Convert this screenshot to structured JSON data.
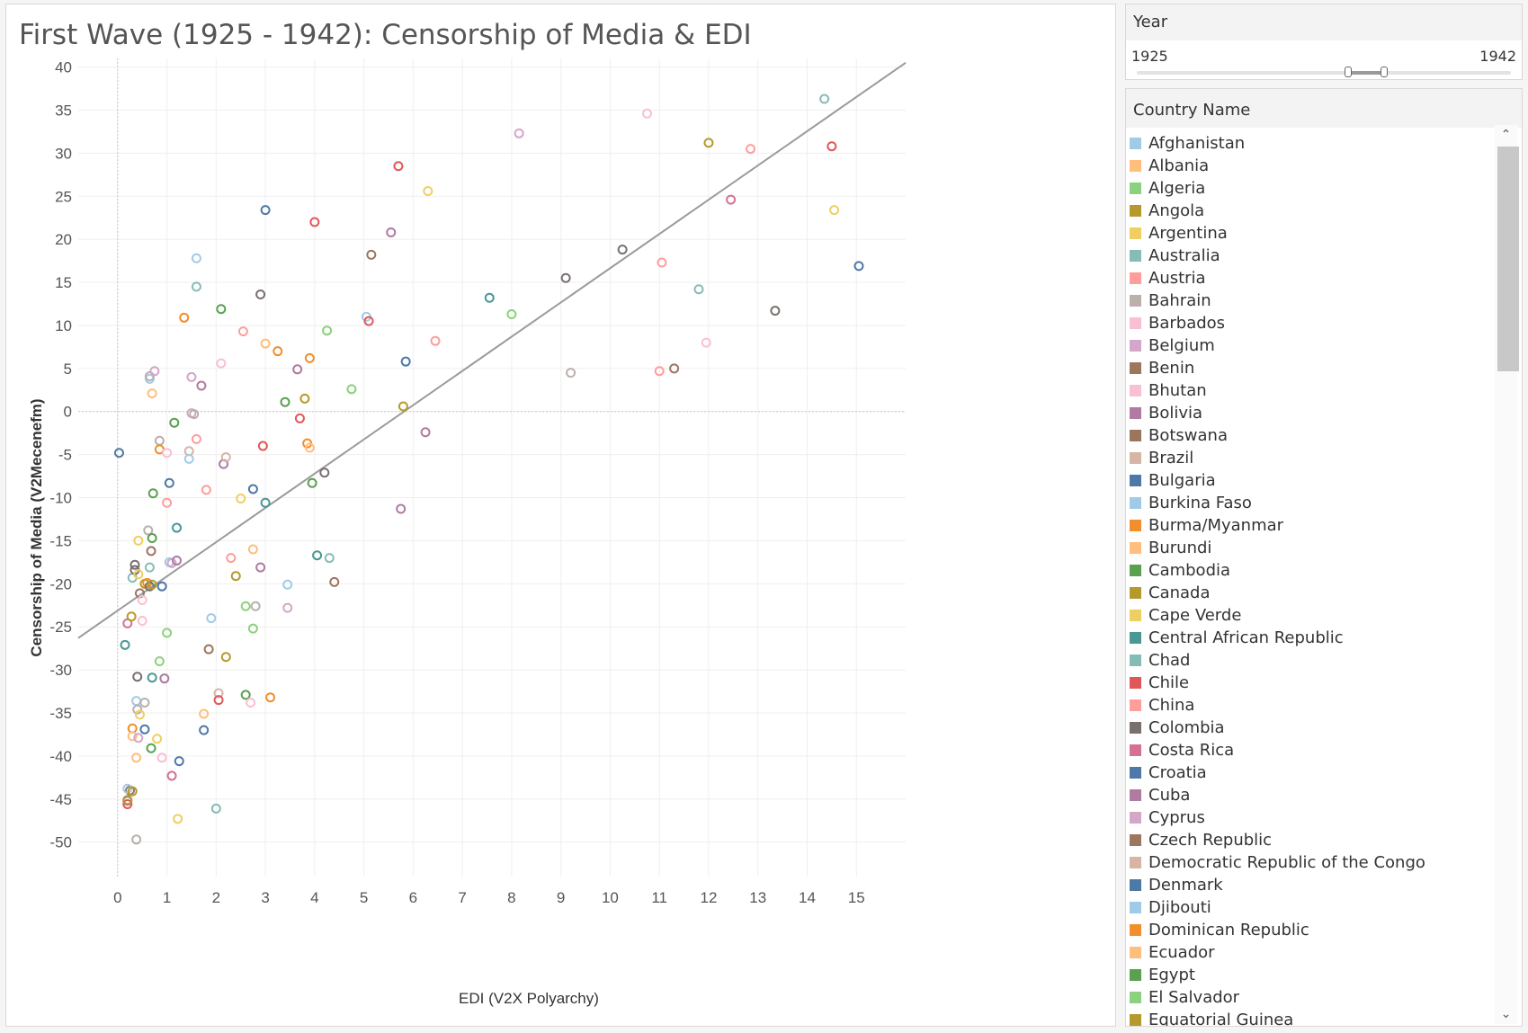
{
  "chart_data": {
    "type": "scatter",
    "title": "First Wave (1925 - 1942): Censorship of Media & EDI",
    "xlabel": "EDI (V2X Polyarchy)",
    "ylabel": "Censorship of Media (V2Mecenefm)",
    "xlim": [
      -0.8,
      16
    ],
    "ylim": [
      -54,
      41
    ],
    "xticks": [
      0,
      1,
      2,
      3,
      4,
      5,
      6,
      7,
      8,
      9,
      10,
      11,
      12,
      13,
      14,
      15
    ],
    "yticks": [
      40,
      35,
      30,
      25,
      20,
      15,
      10,
      5,
      0,
      -5,
      -10,
      -15,
      -20,
      -25,
      -30,
      -35,
      -40,
      -45,
      -50
    ],
    "grid": true,
    "trendline": {
      "x0": -0.8,
      "y0": -26.3,
      "x1": 16.0,
      "y1": 40.5,
      "color": "#9a9a9a"
    },
    "points": [
      {
        "x": 0.03,
        "y": -4.8,
        "c": "#4e79a7"
      },
      {
        "x": 0.2,
        "y": -45.2,
        "c": "#b07aa1"
      },
      {
        "x": 0.2,
        "y": -45.6,
        "c": "#e15759"
      },
      {
        "x": 0.2,
        "y": -45.1,
        "c": "#b6992d"
      },
      {
        "x": 0.25,
        "y": -44.0,
        "c": "#9c755f"
      },
      {
        "x": 0.2,
        "y": -43.8,
        "c": "#a0cbe8"
      },
      {
        "x": 0.3,
        "y": -44.1,
        "c": "#b6992d"
      },
      {
        "x": 0.2,
        "y": -24.6,
        "c": "#d37295"
      },
      {
        "x": 0.15,
        "y": -27.1,
        "c": "#499894"
      },
      {
        "x": 0.28,
        "y": -23.8,
        "c": "#b6992d"
      },
      {
        "x": 0.3,
        "y": -19.3,
        "c": "#86bcb6"
      },
      {
        "x": 0.35,
        "y": -18.4,
        "c": "#79706e"
      },
      {
        "x": 0.35,
        "y": -17.8,
        "c": "#79706e"
      },
      {
        "x": 0.42,
        "y": -18.9,
        "c": "#f1ce63"
      },
      {
        "x": 0.45,
        "y": -21.1,
        "c": "#9d7660"
      },
      {
        "x": 0.5,
        "y": -21.9,
        "c": "#fabfd2"
      },
      {
        "x": 0.5,
        "y": -24.3,
        "c": "#fabfd2"
      },
      {
        "x": 0.55,
        "y": -20.0,
        "c": "#b6992d"
      },
      {
        "x": 0.6,
        "y": -19.9,
        "c": "#f28e2b"
      },
      {
        "x": 0.65,
        "y": -20.3,
        "c": "#79706e"
      },
      {
        "x": 0.7,
        "y": -20.1,
        "c": "#b6992d"
      },
      {
        "x": 0.4,
        "y": -30.8,
        "c": "#79706e"
      },
      {
        "x": 0.7,
        "y": -30.9,
        "c": "#499894"
      },
      {
        "x": 0.95,
        "y": -31.0,
        "c": "#b07aa1"
      },
      {
        "x": 0.85,
        "y": -29.0,
        "c": "#8cd17d"
      },
      {
        "x": 1.0,
        "y": -25.7,
        "c": "#8cd17d"
      },
      {
        "x": 0.9,
        "y": -20.3,
        "c": "#4e79a7"
      },
      {
        "x": 0.38,
        "y": -33.6,
        "c": "#a0cbe8"
      },
      {
        "x": 0.55,
        "y": -33.8,
        "c": "#bab0ac"
      },
      {
        "x": 0.4,
        "y": -34.6,
        "c": "#bab0ac"
      },
      {
        "x": 0.45,
        "y": -35.2,
        "c": "#f1ce63"
      },
      {
        "x": 0.3,
        "y": -36.8,
        "c": "#f28e2b"
      },
      {
        "x": 0.55,
        "y": -36.9,
        "c": "#4e79a7"
      },
      {
        "x": 0.3,
        "y": -37.7,
        "c": "#ffbe7d"
      },
      {
        "x": 0.42,
        "y": -37.9,
        "c": "#d4a6c8"
      },
      {
        "x": 0.8,
        "y": -38.0,
        "c": "#f1ce63"
      },
      {
        "x": 0.68,
        "y": -39.1,
        "c": "#59a14f"
      },
      {
        "x": 0.38,
        "y": -40.2,
        "c": "#ffbe7d"
      },
      {
        "x": 0.9,
        "y": -40.2,
        "c": "#fabfd2"
      },
      {
        "x": 0.38,
        "y": -49.7,
        "c": "#bab0ac"
      },
      {
        "x": 1.1,
        "y": -42.3,
        "c": "#d37295"
      },
      {
        "x": 1.25,
        "y": -40.6,
        "c": "#4e79a7"
      },
      {
        "x": 1.22,
        "y": -47.3,
        "c": "#f1ce63"
      },
      {
        "x": 2.0,
        "y": -46.1,
        "c": "#86bcb6"
      },
      {
        "x": 0.42,
        "y": -15.0,
        "c": "#f1ce63"
      },
      {
        "x": 0.62,
        "y": -13.8,
        "c": "#bab0ac"
      },
      {
        "x": 0.7,
        "y": -14.7,
        "c": "#59a14f"
      },
      {
        "x": 0.68,
        "y": -16.2,
        "c": "#9c755f"
      },
      {
        "x": 0.65,
        "y": -18.1,
        "c": "#86bcb6"
      },
      {
        "x": 1.05,
        "y": -17.5,
        "c": "#a0cbe8"
      },
      {
        "x": 1.1,
        "y": -17.6,
        "c": "#d4a6c8"
      },
      {
        "x": 1.2,
        "y": -17.3,
        "c": "#b07aa1"
      },
      {
        "x": 1.2,
        "y": -13.5,
        "c": "#499894"
      },
      {
        "x": 0.72,
        "y": -9.5,
        "c": "#59a14f"
      },
      {
        "x": 1.0,
        "y": -10.6,
        "c": "#ff9d9a"
      },
      {
        "x": 1.05,
        "y": -8.3,
        "c": "#4e79a7"
      },
      {
        "x": 0.85,
        "y": -3.4,
        "c": "#bab0ac"
      },
      {
        "x": 0.85,
        "y": -4.4,
        "c": "#f28e2b"
      },
      {
        "x": 1.0,
        "y": -4.8,
        "c": "#fabfd2"
      },
      {
        "x": 1.15,
        "y": -1.3,
        "c": "#59a14f"
      },
      {
        "x": 1.45,
        "y": -4.6,
        "c": "#d7b5a6"
      },
      {
        "x": 1.45,
        "y": -5.5,
        "c": "#a0cbe8"
      },
      {
        "x": 1.5,
        "y": -0.2,
        "c": "#d4a6c8"
      },
      {
        "x": 1.55,
        "y": -0.3,
        "c": "#bab0ac"
      },
      {
        "x": 1.6,
        "y": -3.2,
        "c": "#ff9d9a"
      },
      {
        "x": 0.7,
        "y": 2.1,
        "c": "#ffbe7d"
      },
      {
        "x": 0.65,
        "y": 3.8,
        "c": "#a0cbe8"
      },
      {
        "x": 0.65,
        "y": 4.1,
        "c": "#bab0ac"
      },
      {
        "x": 0.75,
        "y": 4.7,
        "c": "#d4a6c8"
      },
      {
        "x": 1.5,
        "y": 4.0,
        "c": "#d4a6c8"
      },
      {
        "x": 1.7,
        "y": 3.0,
        "c": "#b07aa1"
      },
      {
        "x": 1.35,
        "y": 10.9,
        "c": "#f28e2b"
      },
      {
        "x": 1.6,
        "y": 14.5,
        "c": "#86bcb6"
      },
      {
        "x": 1.6,
        "y": 17.8,
        "c": "#a0cbe8"
      },
      {
        "x": 2.1,
        "y": 11.9,
        "c": "#59a14f"
      },
      {
        "x": 2.1,
        "y": 5.6,
        "c": "#fabfd2"
      },
      {
        "x": 2.55,
        "y": 9.3,
        "c": "#ff9d9a"
      },
      {
        "x": 2.9,
        "y": 13.6,
        "c": "#79706e"
      },
      {
        "x": 3.0,
        "y": 23.4,
        "c": "#4e79a7"
      },
      {
        "x": 3.0,
        "y": 7.9,
        "c": "#ffbe7d"
      },
      {
        "x": 3.25,
        "y": 7.0,
        "c": "#f28e2b"
      },
      {
        "x": 1.8,
        "y": -9.1,
        "c": "#ff9d9a"
      },
      {
        "x": 2.15,
        "y": -6.1,
        "c": "#b07aa1"
      },
      {
        "x": 2.2,
        "y": -5.3,
        "c": "#d7b5a6"
      },
      {
        "x": 2.5,
        "y": -10.1,
        "c": "#f1ce63"
      },
      {
        "x": 2.75,
        "y": -9.0,
        "c": "#4e79a7"
      },
      {
        "x": 3.0,
        "y": -10.6,
        "c": "#499894"
      },
      {
        "x": 2.95,
        "y": -4.0,
        "c": "#e15759"
      },
      {
        "x": 2.3,
        "y": -17.0,
        "c": "#ff9d9a"
      },
      {
        "x": 2.75,
        "y": -16.0,
        "c": "#ffbe7d"
      },
      {
        "x": 2.9,
        "y": -18.1,
        "c": "#b07aa1"
      },
      {
        "x": 2.4,
        "y": -19.1,
        "c": "#b6992d"
      },
      {
        "x": 1.9,
        "y": -24.0,
        "c": "#a0cbe8"
      },
      {
        "x": 2.6,
        "y": -22.6,
        "c": "#8cd17d"
      },
      {
        "x": 2.8,
        "y": -22.6,
        "c": "#bab0ac"
      },
      {
        "x": 2.75,
        "y": -25.2,
        "c": "#8cd17d"
      },
      {
        "x": 1.85,
        "y": -27.6,
        "c": "#9c755f"
      },
      {
        "x": 2.2,
        "y": -28.5,
        "c": "#b6992d"
      },
      {
        "x": 1.75,
        "y": -35.1,
        "c": "#ffbe7d"
      },
      {
        "x": 2.05,
        "y": -32.7,
        "c": "#d7b5a6"
      },
      {
        "x": 2.05,
        "y": -33.5,
        "c": "#e15759"
      },
      {
        "x": 1.75,
        "y": -37.0,
        "c": "#4e79a7"
      },
      {
        "x": 2.6,
        "y": -32.9,
        "c": "#59a14f"
      },
      {
        "x": 2.7,
        "y": -33.8,
        "c": "#fabfd2"
      },
      {
        "x": 3.1,
        "y": -33.2,
        "c": "#f28e2b"
      },
      {
        "x": 3.45,
        "y": -22.8,
        "c": "#d4a6c8"
      },
      {
        "x": 3.45,
        "y": -20.1,
        "c": "#a0cbe8"
      },
      {
        "x": 3.4,
        "y": 1.1,
        "c": "#59a14f"
      },
      {
        "x": 3.65,
        "y": 4.9,
        "c": "#b07aa1"
      },
      {
        "x": 3.7,
        "y": -0.8,
        "c": "#e15759"
      },
      {
        "x": 3.8,
        "y": 1.5,
        "c": "#b6992d"
      },
      {
        "x": 3.85,
        "y": -3.7,
        "c": "#f28e2b"
      },
      {
        "x": 3.9,
        "y": -4.2,
        "c": "#ffbe7d"
      },
      {
        "x": 3.9,
        "y": 6.2,
        "c": "#f28e2b"
      },
      {
        "x": 3.95,
        "y": -8.3,
        "c": "#59a14f"
      },
      {
        "x": 4.0,
        "y": 22.0,
        "c": "#e15759"
      },
      {
        "x": 4.05,
        "y": -16.7,
        "c": "#499894"
      },
      {
        "x": 4.2,
        "y": -7.1,
        "c": "#79706e"
      },
      {
        "x": 4.25,
        "y": 9.4,
        "c": "#8cd17d"
      },
      {
        "x": 4.3,
        "y": -17.0,
        "c": "#86bcb6"
      },
      {
        "x": 4.4,
        "y": -19.8,
        "c": "#9c755f"
      },
      {
        "x": 4.75,
        "y": 2.6,
        "c": "#8cd17d"
      },
      {
        "x": 5.05,
        "y": 11.0,
        "c": "#a0cbe8"
      },
      {
        "x": 5.1,
        "y": 10.5,
        "c": "#e15759"
      },
      {
        "x": 5.15,
        "y": 18.2,
        "c": "#9c755f"
      },
      {
        "x": 5.55,
        "y": 20.8,
        "c": "#b07aa1"
      },
      {
        "x": 5.7,
        "y": 28.5,
        "c": "#e15759"
      },
      {
        "x": 5.75,
        "y": -11.3,
        "c": "#b07aa1"
      },
      {
        "x": 5.8,
        "y": 0.6,
        "c": "#b6992d"
      },
      {
        "x": 5.85,
        "y": 5.8,
        "c": "#4e79a7"
      },
      {
        "x": 6.25,
        "y": -2.4,
        "c": "#b07aa1"
      },
      {
        "x": 6.3,
        "y": 25.6,
        "c": "#f1ce63"
      },
      {
        "x": 6.45,
        "y": 8.2,
        "c": "#ff9d9a"
      },
      {
        "x": 7.55,
        "y": 13.2,
        "c": "#499894"
      },
      {
        "x": 8.0,
        "y": 11.3,
        "c": "#8cd17d"
      },
      {
        "x": 8.15,
        "y": 32.3,
        "c": "#d4a6c8"
      },
      {
        "x": 9.1,
        "y": 15.5,
        "c": "#79706e"
      },
      {
        "x": 9.2,
        "y": 4.5,
        "c": "#bab0ac"
      },
      {
        "x": 10.25,
        "y": 18.8,
        "c": "#79706e"
      },
      {
        "x": 10.75,
        "y": 34.6,
        "c": "#fabfd2"
      },
      {
        "x": 11.0,
        "y": 4.7,
        "c": "#ff9d9a"
      },
      {
        "x": 11.05,
        "y": 17.3,
        "c": "#ff9d9a"
      },
      {
        "x": 11.3,
        "y": 5.0,
        "c": "#9c755f"
      },
      {
        "x": 11.8,
        "y": 14.2,
        "c": "#86bcb6"
      },
      {
        "x": 11.95,
        "y": 8.0,
        "c": "#fabfd2"
      },
      {
        "x": 12.0,
        "y": 31.2,
        "c": "#b6992d"
      },
      {
        "x": 12.45,
        "y": 24.6,
        "c": "#d37295"
      },
      {
        "x": 12.85,
        "y": 30.5,
        "c": "#ff9d9a"
      },
      {
        "x": 13.35,
        "y": 11.7,
        "c": "#79706e"
      },
      {
        "x": 14.35,
        "y": 36.3,
        "c": "#86bcb6"
      },
      {
        "x": 14.5,
        "y": 30.8,
        "c": "#e15759"
      },
      {
        "x": 14.55,
        "y": 23.4,
        "c": "#f1ce63"
      },
      {
        "x": 15.05,
        "y": 16.9,
        "c": "#4e79a7"
      }
    ]
  },
  "year_filter": {
    "title": "Year",
    "min_label": "1925",
    "max_label": "1942"
  },
  "country_legend": {
    "title": "Country Name",
    "items": [
      {
        "label": "Afghanistan",
        "color": "#a0cbe8"
      },
      {
        "label": "Albania",
        "color": "#ffbe7d"
      },
      {
        "label": "Algeria",
        "color": "#8cd17d"
      },
      {
        "label": "Angola",
        "color": "#b6992d"
      },
      {
        "label": "Argentina",
        "color": "#f1ce63"
      },
      {
        "label": "Australia",
        "color": "#86bcb6"
      },
      {
        "label": "Austria",
        "color": "#ff9d9a"
      },
      {
        "label": "Bahrain",
        "color": "#bab0ac"
      },
      {
        "label": "Barbados",
        "color": "#fabfd2"
      },
      {
        "label": "Belgium",
        "color": "#d4a6c8"
      },
      {
        "label": "Benin",
        "color": "#9d7660"
      },
      {
        "label": "Bhutan",
        "color": "#fabfd2"
      },
      {
        "label": "Bolivia",
        "color": "#b07aa1"
      },
      {
        "label": "Botswana",
        "color": "#9c755f"
      },
      {
        "label": "Brazil",
        "color": "#d7b5a6"
      },
      {
        "label": "Bulgaria",
        "color": "#4e79a7"
      },
      {
        "label": "Burkina Faso",
        "color": "#a0cbe8"
      },
      {
        "label": "Burma/Myanmar",
        "color": "#f28e2b"
      },
      {
        "label": "Burundi",
        "color": "#ffbe7d"
      },
      {
        "label": "Cambodia",
        "color": "#59a14f"
      },
      {
        "label": "Canada",
        "color": "#b6992d"
      },
      {
        "label": "Cape Verde",
        "color": "#f1ce63"
      },
      {
        "label": "Central African Republic",
        "color": "#499894"
      },
      {
        "label": "Chad",
        "color": "#86bcb6"
      },
      {
        "label": "Chile",
        "color": "#e15759"
      },
      {
        "label": "China",
        "color": "#ff9d9a"
      },
      {
        "label": "Colombia",
        "color": "#79706e"
      },
      {
        "label": "Costa Rica",
        "color": "#d37295"
      },
      {
        "label": "Croatia",
        "color": "#4e79a7"
      },
      {
        "label": "Cuba",
        "color": "#b07aa1"
      },
      {
        "label": "Cyprus",
        "color": "#d4a6c8"
      },
      {
        "label": "Czech Republic",
        "color": "#9d7660"
      },
      {
        "label": "Democratic Republic of the Congo",
        "color": "#d7b5a6"
      },
      {
        "label": "Denmark",
        "color": "#4e79a7"
      },
      {
        "label": "Djibouti",
        "color": "#a0cbe8"
      },
      {
        "label": "Dominican Republic",
        "color": "#f28e2b"
      },
      {
        "label": "Ecuador",
        "color": "#ffbe7d"
      },
      {
        "label": "Egypt",
        "color": "#59a14f"
      },
      {
        "label": "El Salvador",
        "color": "#8cd17d"
      },
      {
        "label": "Equatorial Guinea",
        "color": "#b6992d"
      }
    ]
  }
}
